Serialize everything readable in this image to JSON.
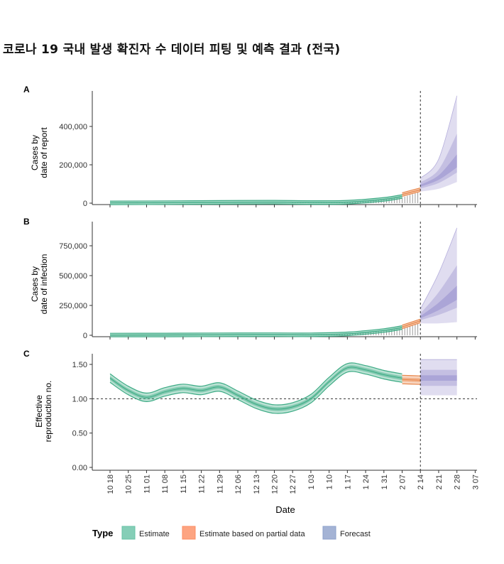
{
  "title": "코로나 19 국내 발생 확진자 수 데이터 피팅 및 예측 결과 (전국)",
  "chart_data": [
    {
      "panel": "A",
      "type": "area",
      "ylabel_lines": [
        "Cases by",
        "date of report"
      ],
      "ylim": [
        0,
        560000
      ],
      "y_ticks": [
        0,
        200000,
        400000
      ],
      "y_tick_labels": [
        "0",
        "200,000",
        "400,000"
      ],
      "observed_bars": true,
      "series": [
        {
          "name": "Estimate",
          "x": [
            "2021-10-18",
            "2021-11-08",
            "2021-11-29",
            "2021-12-20",
            "2022-01-03",
            "2022-01-17",
            "2022-01-31",
            "2022-02-07"
          ],
          "values": [
            1500,
            2500,
            4000,
            5000,
            3500,
            5000,
            20000,
            35000
          ]
        },
        {
          "name": "Estimate based on partial data",
          "x": [
            "2022-02-07",
            "2022-02-14"
          ],
          "values": [
            45000,
            70000
          ]
        },
        {
          "name": "Forecast",
          "x": [
            "2022-02-14",
            "2022-02-21",
            "2022-02-28"
          ],
          "median": [
            90000,
            130000,
            200000
          ],
          "lower": [
            60000,
            75000,
            110000
          ],
          "upper": [
            130000,
            230000,
            560000
          ]
        }
      ]
    },
    {
      "panel": "B",
      "type": "area",
      "ylabel_lines": [
        "Cases by",
        "date of infection"
      ],
      "ylim": [
        0,
        900000
      ],
      "y_ticks": [
        0,
        250000,
        500000,
        750000
      ],
      "y_tick_labels": [
        "0",
        "250,000",
        "500,000",
        "750,000"
      ],
      "observed_bars": true,
      "series": [
        {
          "name": "Estimate",
          "x": [
            "2021-10-18",
            "2021-11-08",
            "2021-11-29",
            "2021-12-20",
            "2022-01-03",
            "2022-01-17",
            "2022-01-31",
            "2022-02-07"
          ],
          "values": [
            1500,
            2500,
            4000,
            5000,
            4000,
            12000,
            40000,
            65000
          ]
        },
        {
          "name": "Estimate based on partial data",
          "x": [
            "2022-02-07",
            "2022-02-14"
          ],
          "values": [
            70000,
            120000
          ]
        },
        {
          "name": "Forecast",
          "x": [
            "2022-02-14",
            "2022-02-21",
            "2022-02-28"
          ],
          "median": [
            150000,
            230000,
            330000
          ],
          "lower": [
            100000,
            100000,
            110000
          ],
          "upper": [
            220000,
            520000,
            900000
          ]
        }
      ]
    },
    {
      "panel": "C",
      "type": "line",
      "ylabel_lines": [
        "Effective",
        "reproduction no."
      ],
      "ylim": [
        0,
        1.6
      ],
      "y_ticks": [
        0,
        0.5,
        1.0,
        1.5
      ],
      "y_tick_labels": [
        "0.00",
        "0.50",
        "1.00",
        "1.50"
      ],
      "reference_line": 1.0,
      "series": [
        {
          "name": "Estimate",
          "x": [
            "2021-10-18",
            "2021-10-25",
            "2021-11-01",
            "2021-11-08",
            "2021-11-15",
            "2021-11-22",
            "2021-11-29",
            "2021-12-06",
            "2021-12-13",
            "2021-12-20",
            "2021-12-27",
            "2022-01-03",
            "2022-01-10",
            "2022-01-17",
            "2022-01-24",
            "2022-01-31",
            "2022-02-07"
          ],
          "values": [
            1.3,
            1.12,
            1.02,
            1.1,
            1.15,
            1.12,
            1.17,
            1.05,
            0.92,
            0.85,
            0.88,
            1.0,
            1.25,
            1.45,
            1.42,
            1.35,
            1.3
          ]
        },
        {
          "name": "Estimate based on partial data",
          "x": [
            "2022-02-07",
            "2022-02-14"
          ],
          "values": [
            1.28,
            1.27
          ]
        },
        {
          "name": "Forecast",
          "x": [
            "2022-02-14",
            "2022-02-28"
          ],
          "median": [
            1.3,
            1.3
          ],
          "lower": [
            1.05,
            1.05
          ],
          "upper": [
            1.57,
            1.57
          ]
        }
      ]
    }
  ],
  "x_axis": {
    "label": "Date",
    "ticks": [
      "10 18",
      "10 25",
      "11 01",
      "11 08",
      "11 15",
      "11 22",
      "11 29",
      "12 06",
      "12 13",
      "12 20",
      "12 27",
      "1 03",
      "1 10",
      "1 17",
      "1 24",
      "1 31",
      "2 07",
      "2 14",
      "2 21",
      "2 28",
      "3 07"
    ],
    "forecast_start_index": 17
  },
  "legend": {
    "title": "Type",
    "items": [
      {
        "label": "Estimate",
        "color": "#66c2a5"
      },
      {
        "label": "Estimate based on partial data",
        "color": "#fc8d62"
      },
      {
        "label": "Forecast",
        "color": "#8da0cb"
      }
    ]
  },
  "colors": {
    "estimate": "#3dab85",
    "partial": "#e8864a",
    "forecast": "#8f86c9",
    "bars": "#9a9a9a"
  }
}
